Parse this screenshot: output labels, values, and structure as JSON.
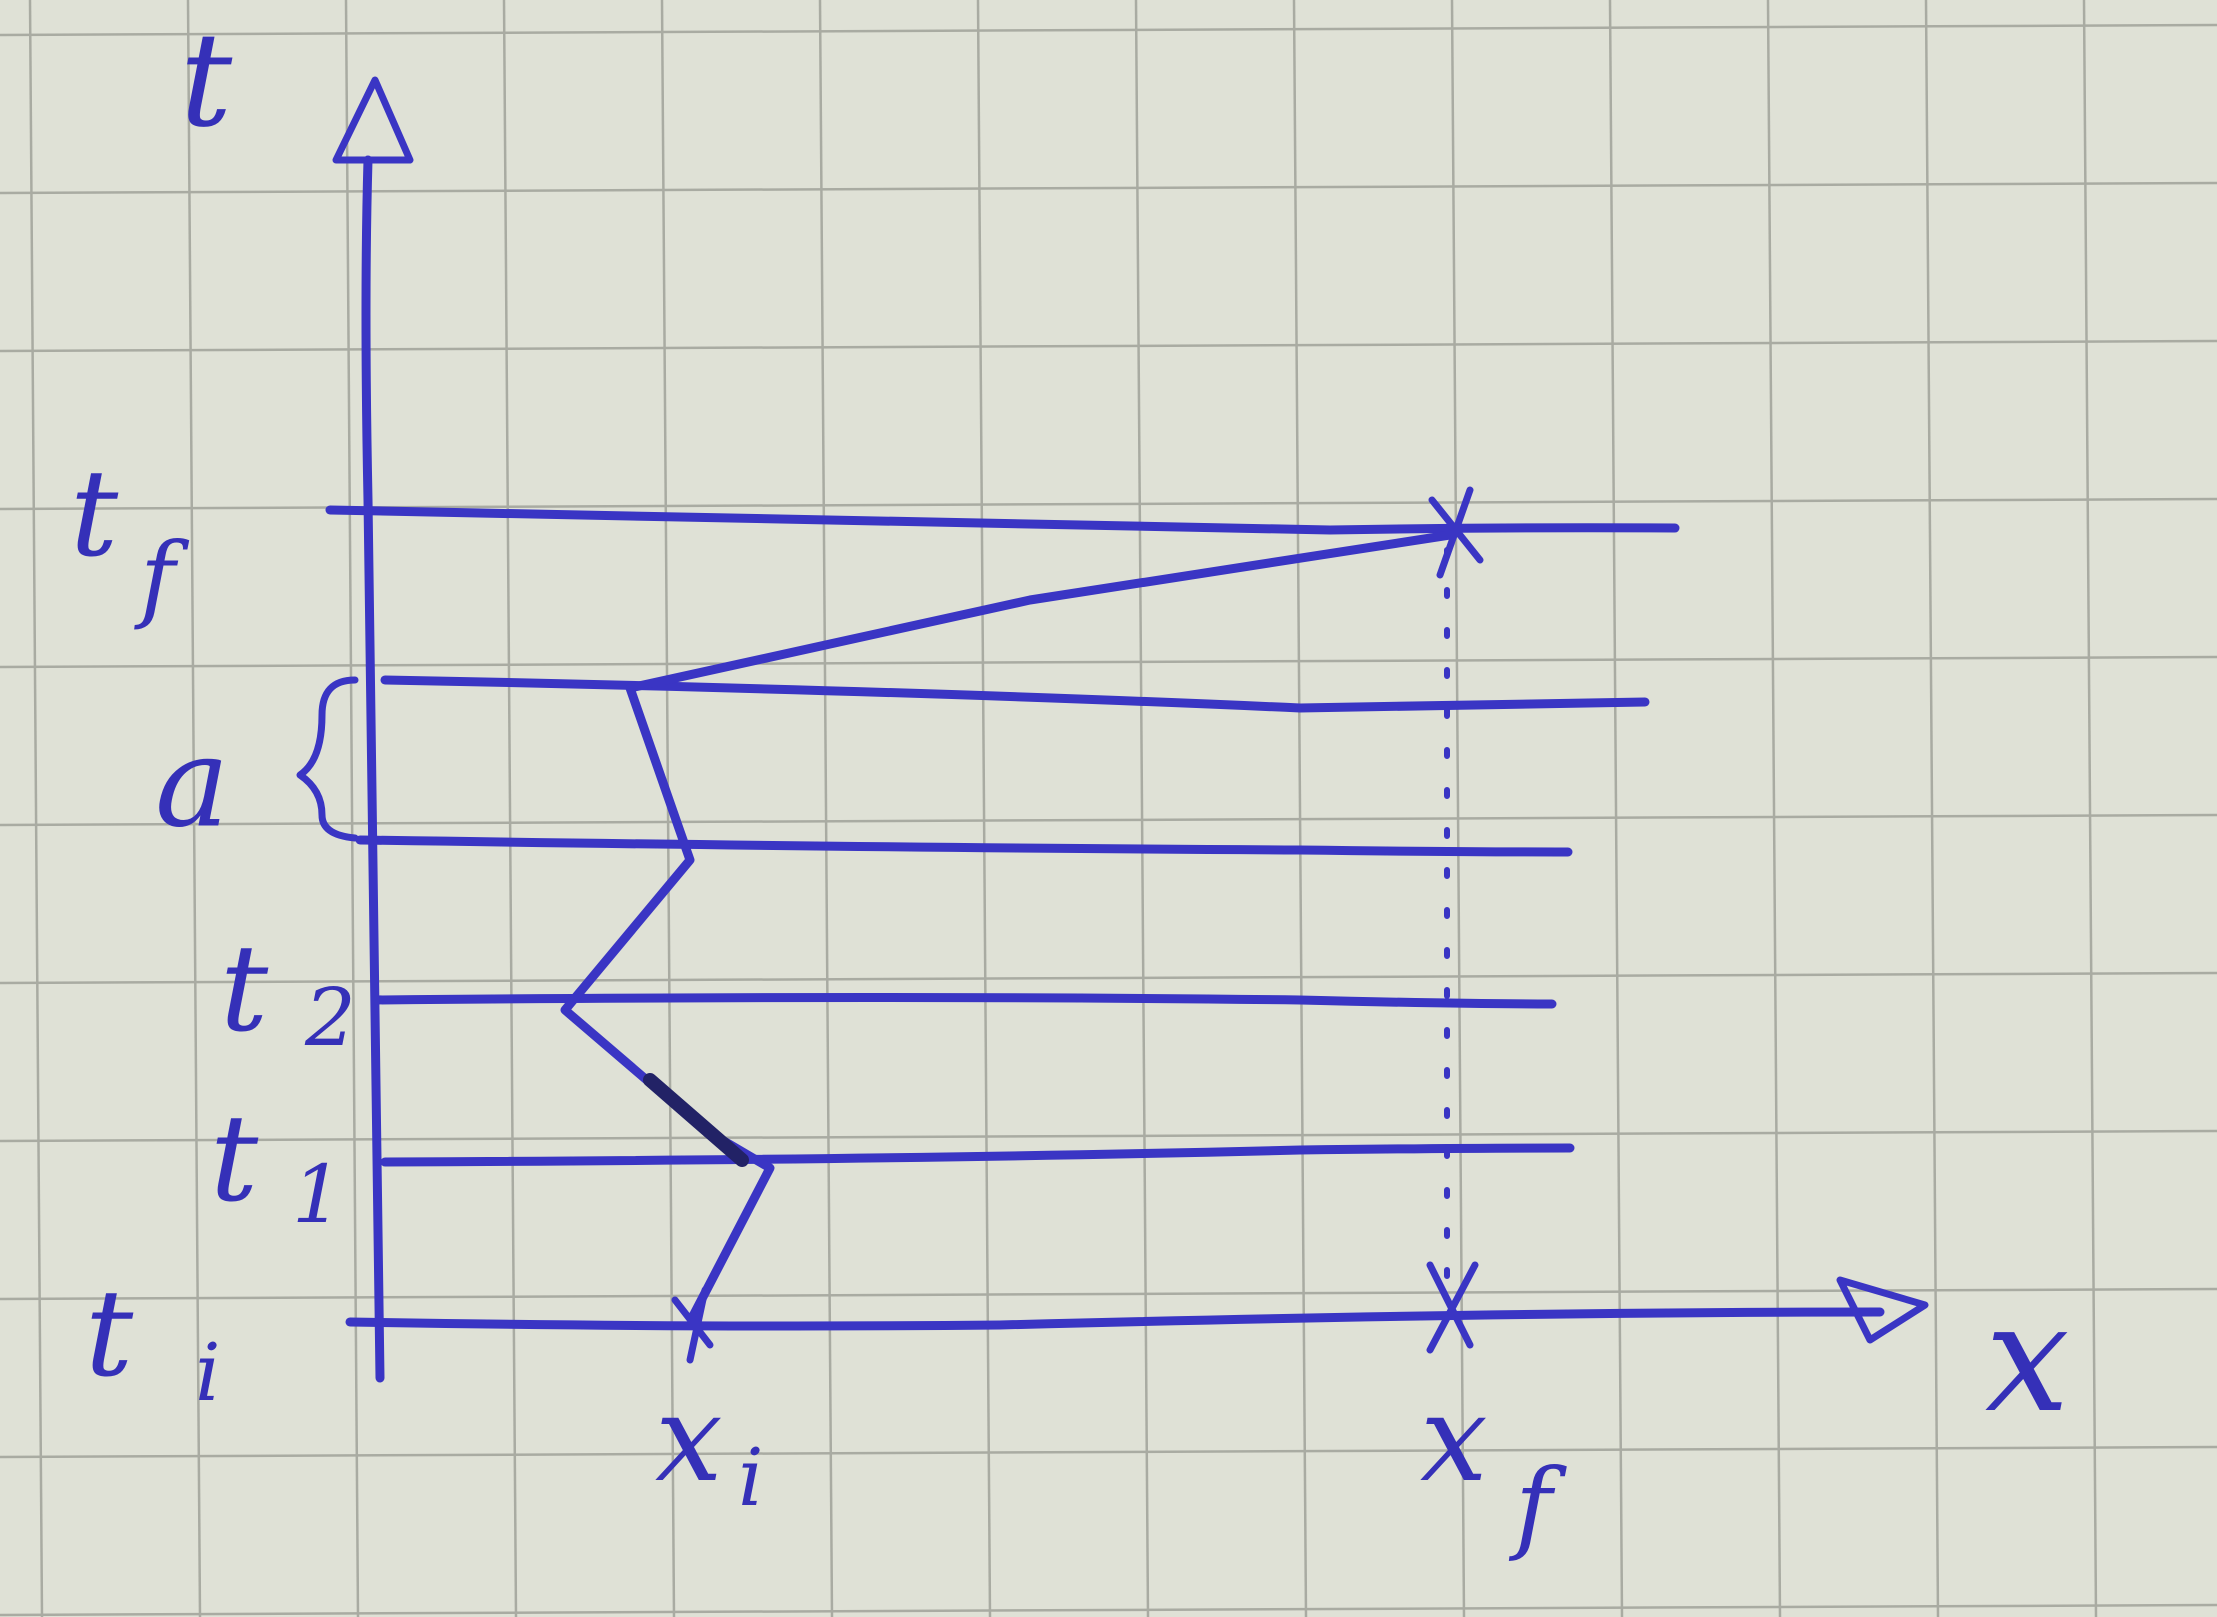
{
  "diagram": {
    "labels": {
      "t_axis": "t",
      "x_axis": "x",
      "t_f": "t",
      "t_f_sub": "f",
      "a": "a",
      "t_2": "t",
      "t_2_sub": "2",
      "t_1": "t",
      "t_1_sub": "1",
      "t_i": "t",
      "t_i_sub": "i",
      "x_i": "x",
      "x_i_sub": "i",
      "x_f": "x",
      "x_f_sub": "f"
    },
    "colors": {
      "ink": "#3a35c4",
      "paper": "#dfe1d6",
      "grid": "#a9aba2"
    }
  }
}
